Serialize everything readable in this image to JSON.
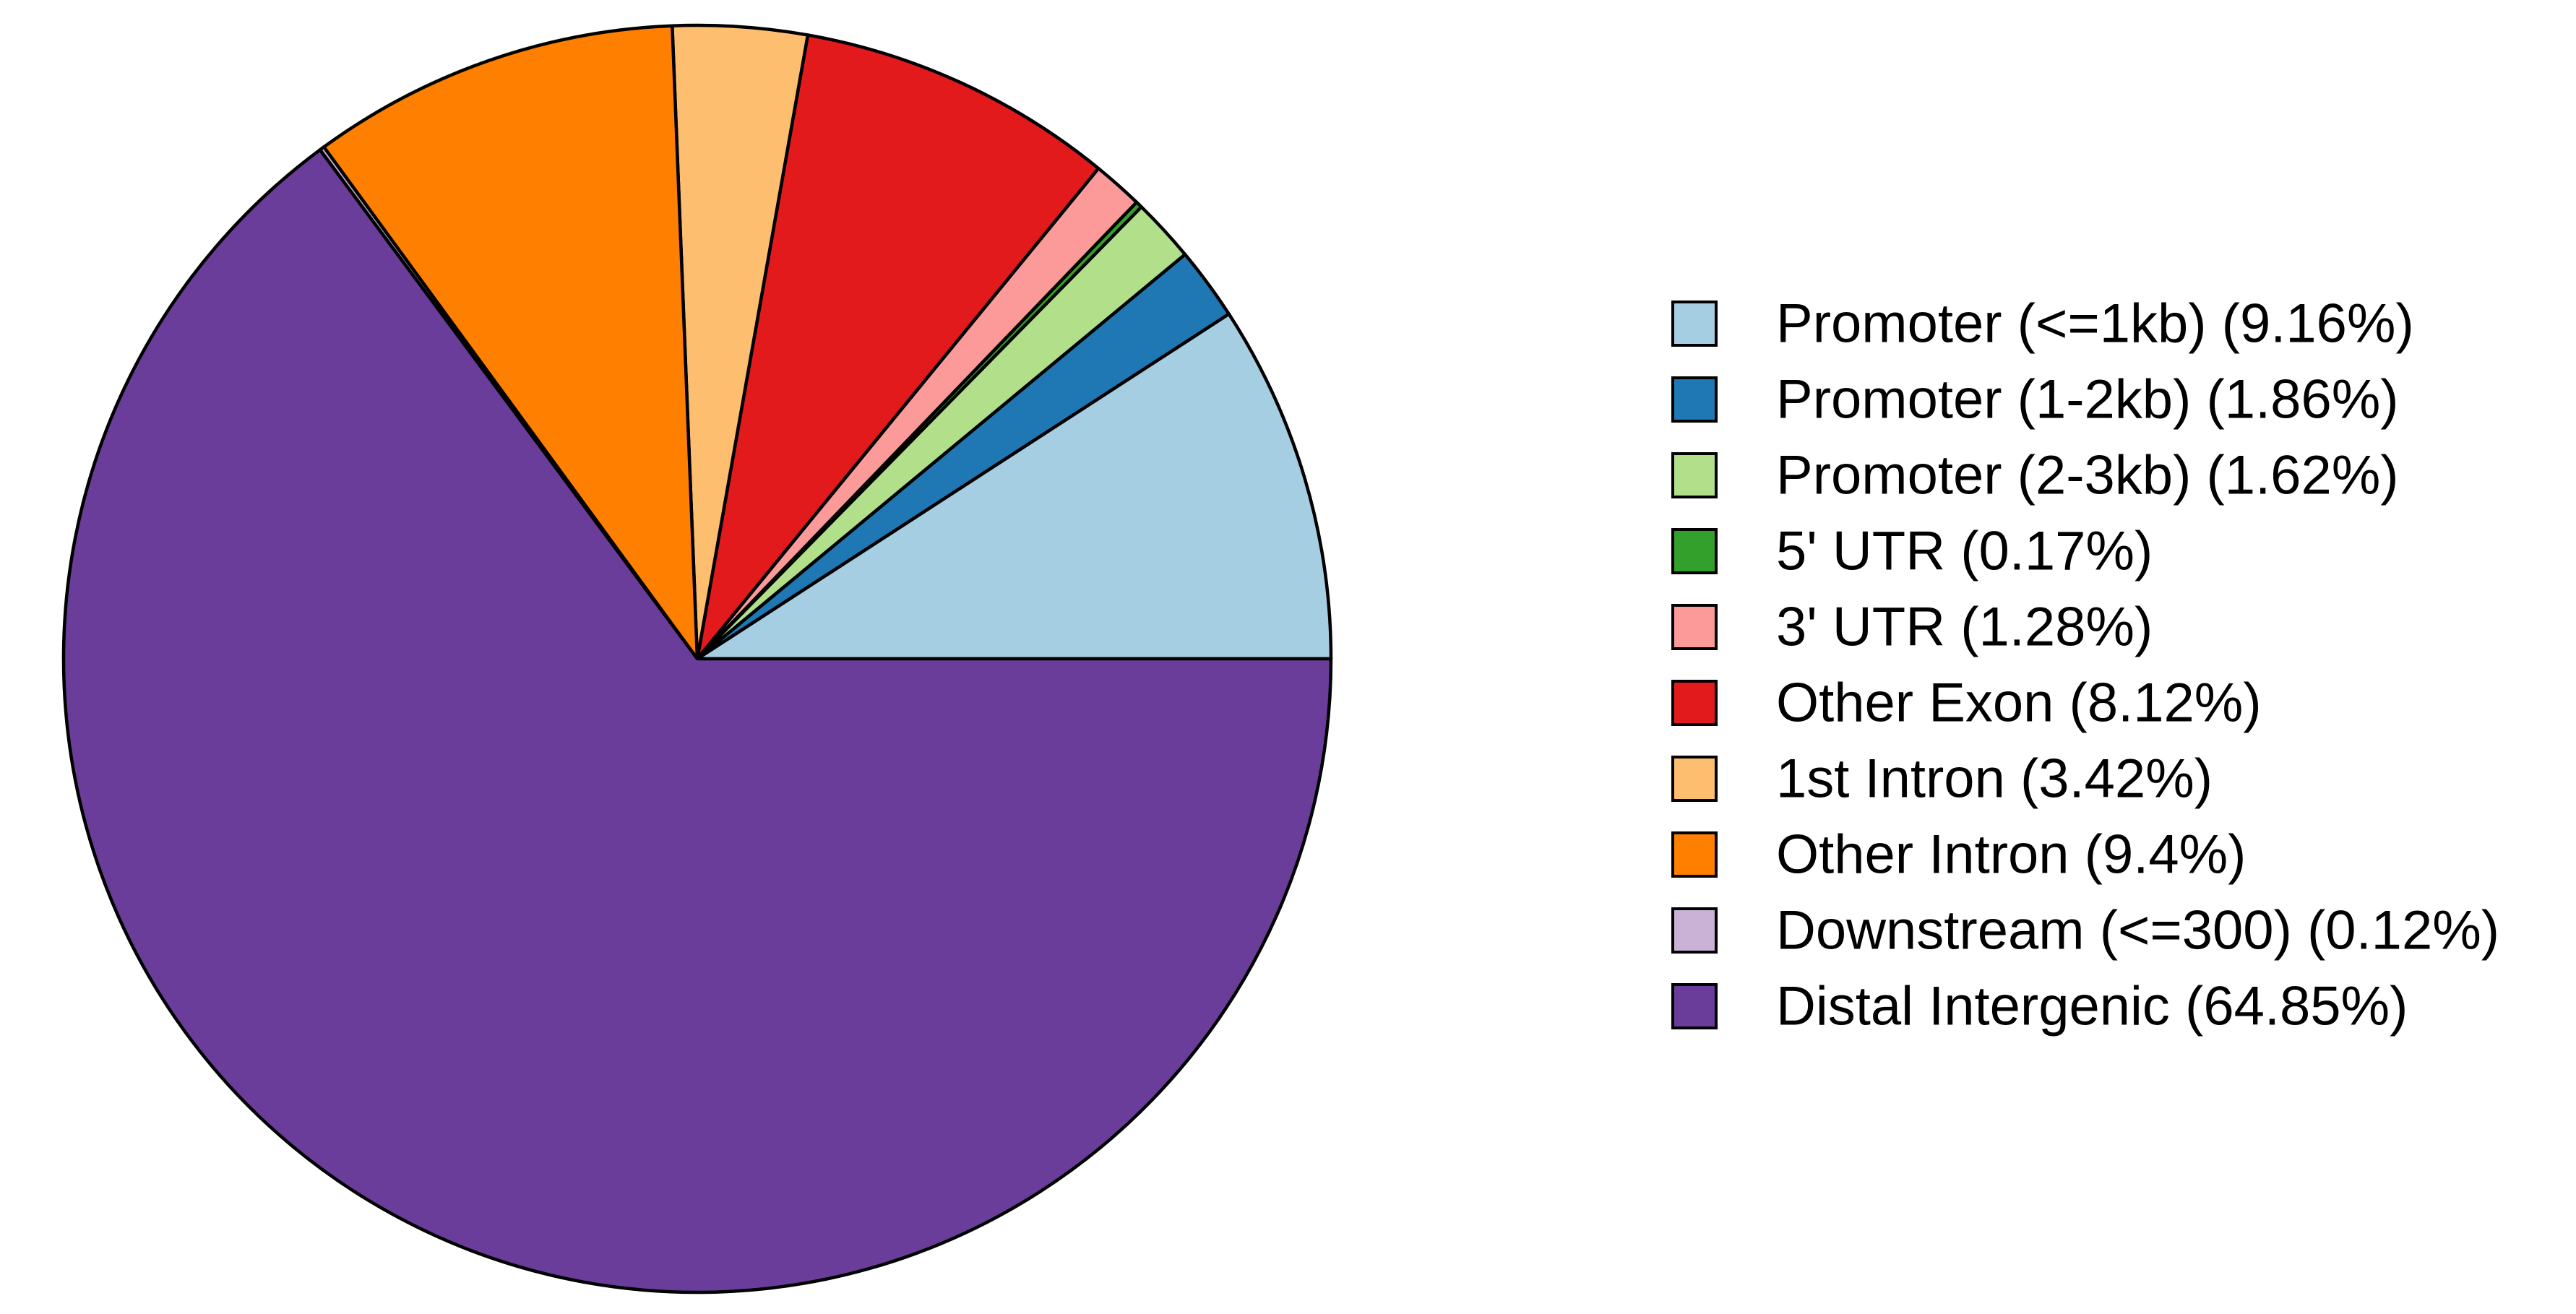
{
  "chart_data": {
    "type": "pie",
    "title": "",
    "slices": [
      {
        "label": "Promoter (<=1kb) (9.16%)",
        "value": 9.16,
        "color": "#A6CEE3"
      },
      {
        "label": "Promoter (1-2kb) (1.86%)",
        "value": 1.86,
        "color": "#1F78B4"
      },
      {
        "label": "Promoter (2-3kb) (1.62%)",
        "value": 1.62,
        "color": "#B2DF8A"
      },
      {
        "label": "5' UTR (0.17%)",
        "value": 0.17,
        "color": "#33A02C"
      },
      {
        "label": "3' UTR (1.28%)",
        "value": 1.28,
        "color": "#FB9A99"
      },
      {
        "label": "Other Exon (8.12%)",
        "value": 8.12,
        "color": "#E31A1C"
      },
      {
        "label": "1st Intron (3.42%)",
        "value": 3.42,
        "color": "#FDBF6F"
      },
      {
        "label": "Other Intron (9.4%)",
        "value": 9.4,
        "color": "#FF7F00"
      },
      {
        "label": "Downstream (<=300) (0.12%)",
        "value": 0.12,
        "color": "#CAB2D6"
      },
      {
        "label": "Distal Intergenic (64.85%)",
        "value": 64.85,
        "color": "#6A3D9A"
      }
    ],
    "start_angle": "3 o'clock",
    "direction": "counter-clockwise",
    "legend_position": "right"
  }
}
